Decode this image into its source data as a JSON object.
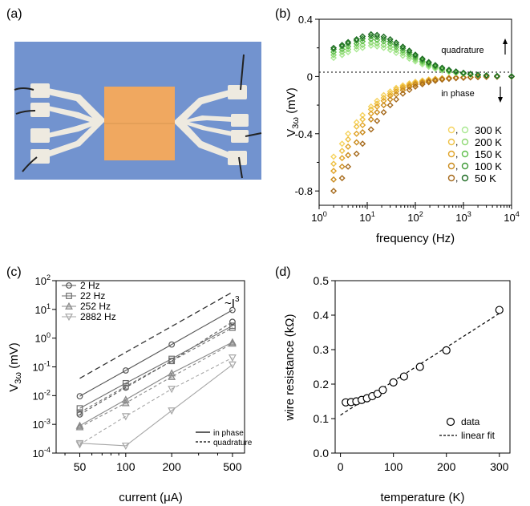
{
  "panels": {
    "a": {
      "label": "(a)"
    },
    "b": {
      "label": "(b)"
    },
    "c": {
      "label": "(c)"
    },
    "d": {
      "label": "(d)"
    }
  },
  "colors": {
    "photo_background": "#7293cf",
    "photo_pad": "#eeeae0",
    "photo_sample": "#f0a860",
    "temps": [
      "#f6d35f",
      "#eec042",
      "#e0a226",
      "#c98a1c",
      "#a5691b"
    ],
    "quad": [
      "#a8e890",
      "#8ed873",
      "#5fbf4b",
      "#3f9a37",
      "#1d6b23"
    ],
    "grey_series": [
      "#555555",
      "#6e6e6e",
      "#888888",
      "#a6a6a6"
    ]
  },
  "chart_data": [
    {
      "panel": "b",
      "type": "scatter",
      "xscale": "log",
      "xlabel": "frequency (Hz)",
      "ylabel": "V3ω (mV)",
      "xlim": [
        1,
        10000
      ],
      "ylim": [
        -0.9,
        0.4
      ],
      "xticks": [
        "10^0",
        "10^1",
        "10^2",
        "10^3",
        "10^4"
      ],
      "yticks": [
        "0.4",
        "0",
        "-0.4",
        "-0.8"
      ],
      "annotations": [
        "quadrature",
        "in phase"
      ],
      "legend_labels": [
        "300 K",
        "200 K",
        "150 K",
        "100 K",
        "50 K"
      ],
      "legend_separator": ",",
      "x": [
        2,
        3,
        4,
        6,
        8,
        12,
        16,
        22,
        30,
        40,
        55,
        75,
        100,
        140,
        190,
        260,
        360,
        500,
        700,
        1000,
        1400,
        2000,
        3000,
        5000,
        10000
      ],
      "series": [
        {
          "name": "300 K",
          "component": "in phase",
          "values": [
            -0.56,
            -0.47,
            -0.4,
            -0.32,
            -0.27,
            -0.21,
            -0.17,
            -0.13,
            -0.105,
            -0.08,
            -0.062,
            -0.048,
            -0.037,
            -0.028,
            -0.021,
            -0.016,
            -0.012,
            -0.009,
            -0.007,
            -0.005,
            -0.004,
            -0.003,
            -0.002,
            -0.001,
            -0.001
          ]
        },
        {
          "name": "200 K",
          "component": "in phase",
          "values": [
            -0.61,
            -0.52,
            -0.44,
            -0.35,
            -0.3,
            -0.23,
            -0.19,
            -0.15,
            -0.12,
            -0.09,
            -0.07,
            -0.055,
            -0.042,
            -0.032,
            -0.024,
            -0.018,
            -0.013,
            -0.01,
            -0.008,
            -0.006,
            -0.004,
            -0.003,
            -0.002,
            -0.001,
            -0.001
          ]
        },
        {
          "name": "150 K",
          "component": "in phase",
          "values": [
            -0.66,
            -0.57,
            -0.49,
            -0.4,
            -0.34,
            -0.26,
            -0.21,
            -0.17,
            -0.135,
            -0.105,
            -0.08,
            -0.062,
            -0.048,
            -0.037,
            -0.028,
            -0.02,
            -0.015,
            -0.011,
            -0.008,
            -0.006,
            -0.005,
            -0.003,
            -0.002,
            -0.001,
            -0.001
          ]
        },
        {
          "name": "100 K",
          "component": "in phase",
          "values": [
            -0.72,
            -0.63,
            -0.55,
            -0.46,
            -0.39,
            -0.3,
            -0.25,
            -0.2,
            -0.16,
            -0.125,
            -0.095,
            -0.073,
            -0.056,
            -0.043,
            -0.032,
            -0.024,
            -0.017,
            -0.013,
            -0.009,
            -0.007,
            -0.005,
            -0.004,
            -0.002,
            -0.001,
            -0.001
          ]
        },
        {
          "name": "50 K",
          "component": "in phase",
          "values": [
            -0.8,
            -0.71,
            -0.63,
            -0.54,
            -0.47,
            -0.37,
            -0.31,
            -0.25,
            -0.2,
            -0.16,
            -0.12,
            -0.093,
            -0.071,
            -0.054,
            -0.04,
            -0.03,
            -0.022,
            -0.016,
            -0.012,
            -0.009,
            -0.006,
            -0.004,
            -0.003,
            -0.002,
            -0.001
          ]
        },
        {
          "name": "300 K",
          "component": "quadrature",
          "values": [
            0.13,
            0.15,
            0.17,
            0.19,
            0.2,
            0.215,
            0.21,
            0.2,
            0.185,
            0.165,
            0.145,
            0.125,
            0.105,
            0.085,
            0.068,
            0.054,
            0.042,
            0.032,
            0.024,
            0.018,
            0.013,
            0.009,
            0.006,
            0.003,
            0.001
          ]
        },
        {
          "name": "200 K",
          "component": "quadrature",
          "values": [
            0.15,
            0.17,
            0.19,
            0.21,
            0.22,
            0.235,
            0.23,
            0.22,
            0.205,
            0.185,
            0.163,
            0.14,
            0.118,
            0.096,
            0.077,
            0.061,
            0.047,
            0.036,
            0.027,
            0.02,
            0.014,
            0.01,
            0.006,
            0.003,
            0.001
          ]
        },
        {
          "name": "150 K",
          "component": "quadrature",
          "values": [
            0.17,
            0.19,
            0.21,
            0.23,
            0.245,
            0.26,
            0.255,
            0.245,
            0.228,
            0.205,
            0.18,
            0.155,
            0.13,
            0.106,
            0.085,
            0.067,
            0.052,
            0.04,
            0.03,
            0.022,
            0.016,
            0.011,
            0.007,
            0.003,
            0.001
          ]
        },
        {
          "name": "100 K",
          "component": "quadrature",
          "values": [
            0.19,
            0.21,
            0.23,
            0.25,
            0.265,
            0.28,
            0.275,
            0.263,
            0.245,
            0.222,
            0.196,
            0.168,
            0.142,
            0.116,
            0.093,
            0.073,
            0.057,
            0.043,
            0.032,
            0.024,
            0.017,
            0.012,
            0.007,
            0.003,
            0.001
          ]
        },
        {
          "name": "50 K",
          "component": "quadrature",
          "values": [
            0.2,
            0.22,
            0.24,
            0.26,
            0.28,
            0.295,
            0.29,
            0.278,
            0.26,
            0.236,
            0.208,
            0.18,
            0.152,
            0.124,
            0.1,
            0.079,
            0.061,
            0.046,
            0.035,
            0.026,
            0.018,
            0.012,
            0.007,
            0.003,
            0.001
          ]
        }
      ]
    },
    {
      "panel": "c",
      "type": "line",
      "xscale": "log",
      "yscale": "log",
      "xlabel": "current (μA)",
      "ylabel": "V3ω (mV)",
      "xlim": [
        35,
        600
      ],
      "ylim": [
        0.0001,
        100
      ],
      "xticks": [
        "50",
        "100",
        "200",
        "500"
      ],
      "yticks": [
        "10^2",
        "10^1",
        "10^0",
        "10^-1",
        "10^-2",
        "10^-3",
        "10^-4"
      ],
      "annotation": "~I^3",
      "legend_labels": [
        "2 Hz",
        "22 Hz",
        "252 Hz",
        "2882 Hz"
      ],
      "line_legend": [
        "in phase",
        "quadrature"
      ],
      "x": [
        50,
        100,
        200,
        500
      ],
      "guide": {
        "name": "~I^3",
        "values": [
          0.04,
          0.32,
          2.56,
          40
        ]
      },
      "series": [
        {
          "name": "2 Hz",
          "marker": "circle",
          "inphase": [
            0.0095,
            0.075,
            0.6,
            9.5
          ],
          "quadrature": [
            0.0022,
            0.019,
            0.16,
            3.7
          ]
        },
        {
          "name": "22 Hz",
          "marker": "square",
          "inphase": [
            0.0036,
            0.027,
            0.19,
            2.7
          ],
          "quadrature": [
            0.0026,
            0.021,
            0.16,
            2.3
          ]
        },
        {
          "name": "252 Hz",
          "marker": "triangle-up",
          "inphase": [
            0.0009,
            0.0072,
            0.06,
            0.72
          ],
          "quadrature": [
            0.0008,
            0.0055,
            0.045,
            0.65
          ]
        },
        {
          "name": "2882 Hz",
          "marker": "triangle-down",
          "inphase": [
            0.00022,
            0.00018,
            0.003,
            0.12
          ],
          "quadrature": [
            0.0002,
            0.0019,
            0.017,
            0.21
          ]
        }
      ]
    },
    {
      "panel": "d",
      "type": "scatter",
      "xlabel": "temperature (K)",
      "ylabel": "wire resistance (kΩ)",
      "xlim": [
        -10,
        320
      ],
      "ylim": [
        0.0,
        0.5
      ],
      "xticks": [
        "0",
        "100",
        "200",
        "300"
      ],
      "yticks": [
        "0.5",
        "0.4",
        "0.3",
        "0.2",
        "0.1",
        "0.0"
      ],
      "legend_labels": [
        "data",
        "linear fit"
      ],
      "x": [
        10,
        20,
        30,
        40,
        50,
        60,
        70,
        80,
        100,
        120,
        150,
        200,
        300
      ],
      "values": [
        0.147,
        0.148,
        0.15,
        0.154,
        0.159,
        0.165,
        0.172,
        0.183,
        0.205,
        0.222,
        0.25,
        0.298,
        0.415
      ],
      "fit": {
        "x": [
          0,
          300
        ],
        "values": [
          0.11,
          0.405
        ]
      }
    }
  ]
}
